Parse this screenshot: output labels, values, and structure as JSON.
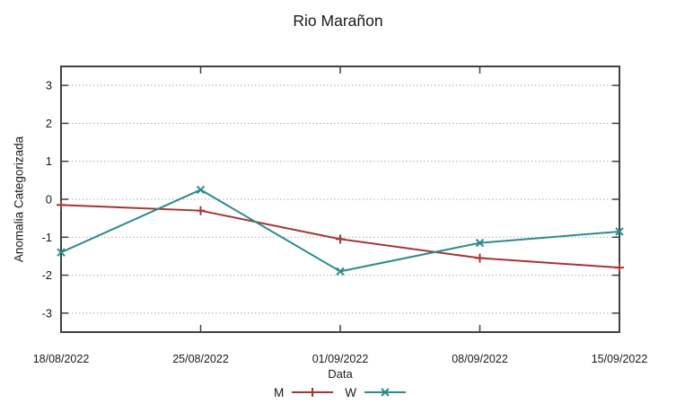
{
  "chart_data": {
    "type": "line",
    "title": "Rio Marañon",
    "xlabel": "Data",
    "ylabel": "Anomalia Categorizada",
    "categories": [
      "18/08/2022",
      "25/08/2022",
      "01/09/2022",
      "08/09/2022",
      "15/09/2022"
    ],
    "y_ticks": [
      3,
      2,
      1,
      0,
      -1,
      -2,
      -3
    ],
    "ylim": [
      -3.5,
      3.5
    ],
    "grid": "horizontal-dotted",
    "legend_position": "bottom-center",
    "series": [
      {
        "name": "M",
        "color": "#a63434",
        "marker": "plus",
        "values": [
          -0.15,
          -0.3,
          -1.05,
          -1.55,
          -1.8
        ]
      },
      {
        "name": "W",
        "color": "#2e8b8b",
        "marker": "cross",
        "values": [
          -1.4,
          0.25,
          -1.9,
          -1.15,
          -0.85
        ]
      }
    ],
    "style": {
      "border_color": "#404040",
      "grid_color": "#a9a9a9",
      "text_color": "#1a1a1a"
    }
  }
}
